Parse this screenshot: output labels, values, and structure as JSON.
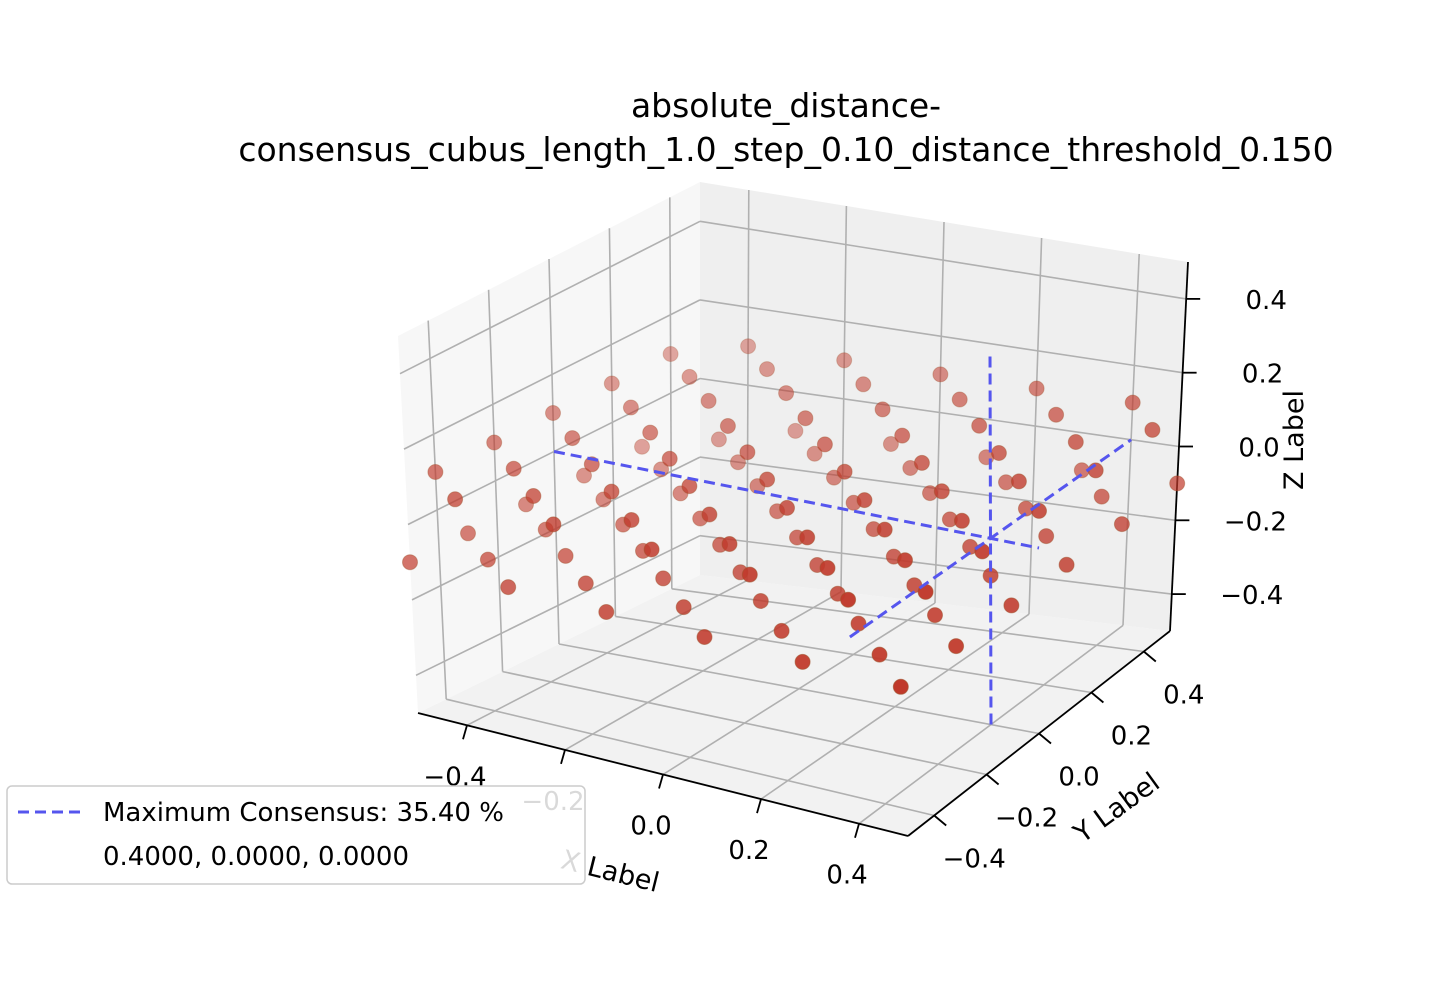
{
  "chart_data": {
    "type": "scatter",
    "projection": "3d",
    "title_lines": [
      "absolute_distance-",
      "consensus_cubus_length_1.0_step_0.10_distance_threshold_0.150"
    ],
    "xlabel": "X Label",
    "ylabel": "Y Label",
    "zlabel": "Z Label",
    "xlim": [
      -0.5,
      0.5
    ],
    "ylim": [
      -0.5,
      0.5
    ],
    "zlim": [
      -0.5,
      0.5
    ],
    "x_ticks": [
      "−0.4",
      "−0.2",
      "0.0",
      "0.2",
      "0.4"
    ],
    "y_ticks": [
      "−0.4",
      "−0.2",
      "0.0",
      "0.2",
      "0.4"
    ],
    "z_ticks": [
      "−0.4",
      "−0.2",
      "0.0",
      "0.2",
      "0.4"
    ],
    "grid": true,
    "points": {
      "x_values": [
        -0.5,
        -0.4,
        -0.3,
        -0.2,
        -0.1,
        0.0,
        0.1,
        0.2,
        0.3,
        0.4,
        0.5
      ],
      "y_values": [
        -0.5,
        -0.4,
        -0.3,
        -0.2,
        -0.1,
        0.0,
        0.1,
        0.2,
        0.3,
        0.4,
        0.5
      ],
      "z_pattern": "checkerboard",
      "z_values": [
        -0.1,
        0.1
      ],
      "color": "#c0392b"
    },
    "maximum": {
      "x": 0.4,
      "y": 0.0,
      "z": 0.0
    },
    "marker_lines": {
      "color": "#5555ee",
      "style": "dashed"
    },
    "legend": {
      "location": "lower left",
      "entry": "Maximum Consensus: 35.40 %",
      "coords": "0.4000, 0.0000, 0.0000"
    }
  }
}
